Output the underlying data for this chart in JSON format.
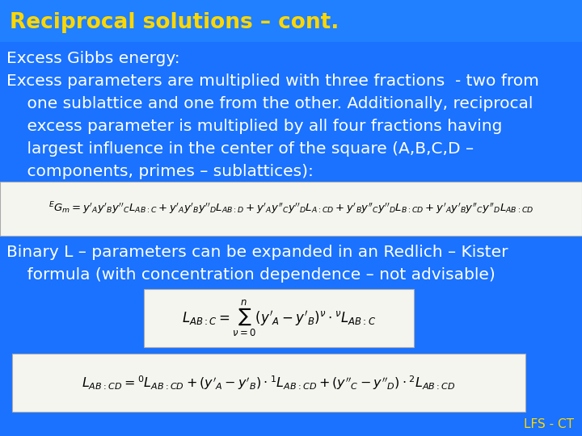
{
  "title": "Reciprocal solutions – cont.",
  "title_color": "#FFD700",
  "title_fontsize": 19,
  "bg_color": "#1A72FF",
  "text_color": "#FFFFFF",
  "body_fontsize": 14.5,
  "footer_text": "LFS - CT",
  "footer_color": "#FFD700",
  "footer_fontsize": 11,
  "line1": "Excess Gibbs energy:",
  "line2": "Excess parameters are multiplied with three fractions  - two from",
  "line3": "    one sublattice and one from the other. Additionally, reciprocal",
  "line4": "    excess parameter is multiplied by all four fractions having",
  "line5": "    largest influence in the center of the square (A,B,C,D –",
  "line6": "    components, primes – sublattices):",
  "line7": "Binary L – parameters can be expanded in an Redlich – Kister",
  "line8": "    formula (with concentration dependence – not advisable)",
  "formula1": "$^{E}G_{m} = y'_{A}y'_{B}y''_{C}L_{AB:C} + y'_{A}y'_{B}y''_{D}L_{AB:D} + y'_{A}y''_{C}y''_{D}L_{A:CD} + y'_{B}y''_{C}y''_{D}L_{B:CD} + y'_{A}y'_{B}y''_{C}y''_{D}L_{AB:CD}$",
  "formula2": "$L_{AB:C} = \\sum_{\\nu=0}^{n}(y'_{A} - y'_{B})^{\\nu} \\cdot {^{\\nu}}L_{AB:C}$",
  "formula3": "$L_{AB:CD} = {^{0}}L_{AB:CD} + (y'_{A} - y'_{B}) \\cdot {^{1}}L_{AB:CD} + (y''_{C} - y''_{D}) \\cdot {^{2}}L_{AB:CD}$",
  "box1_color": "#F5F5F0",
  "box2_color": "#F5F5F0",
  "box3_color": "#F5F5F0"
}
